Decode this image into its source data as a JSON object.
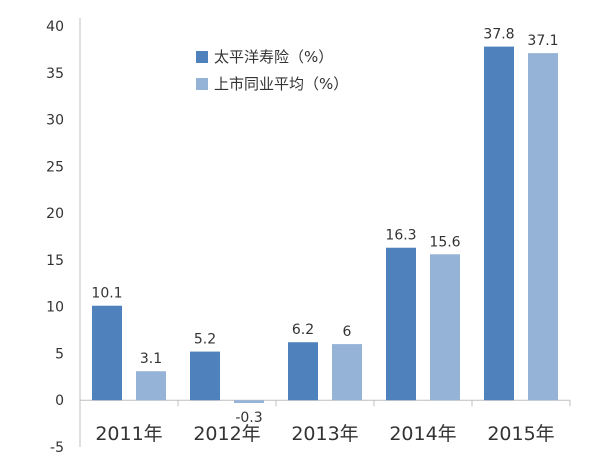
{
  "chart_data": {
    "type": "bar",
    "title": "",
    "xlabel": "",
    "ylabel": "",
    "categories": [
      "2011年",
      "2012年",
      "2013年",
      "2014年",
      "2015年"
    ],
    "series": [
      {
        "name": "太平洋寿险（%）",
        "values": [
          10.1,
          5.2,
          6.2,
          16.3,
          37.8
        ],
        "labels": [
          "10.1",
          "5.2",
          "6.2",
          "16.3",
          "37.8"
        ],
        "color": "#4f81bd"
      },
      {
        "name": "上市同业平均（%）",
        "values": [
          3.1,
          -0.3,
          6,
          15.6,
          37.1
        ],
        "labels": [
          "3.1",
          "-0.3",
          "6",
          "15.6",
          "37.1"
        ],
        "color": "#95b3d7"
      }
    ],
    "ylim": [
      -5,
      40
    ],
    "yticks": [
      -5,
      0,
      5,
      10,
      15,
      20,
      25,
      30,
      35,
      40
    ],
    "grid": false,
    "legend_position": "top-left"
  },
  "colors": {
    "axis": "#bfbfbf",
    "text": "#333333"
  }
}
